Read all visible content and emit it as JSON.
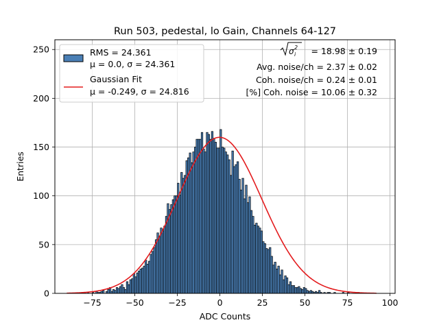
{
  "chart_data": {
    "type": "bar",
    "title": "Run 503, pedestal, lo Gain, Channels 64-127",
    "xlabel": "ADC Counts",
    "ylabel": "Entries",
    "xlim": [
      -97,
      103
    ],
    "ylim": [
      0,
      260
    ],
    "xticks": [
      -75,
      -50,
      -25,
      0,
      25,
      50,
      75,
      100
    ],
    "xtick_labels": [
      "−75",
      "−50",
      "−25",
      "0",
      "25",
      "50",
      "75",
      "100"
    ],
    "yticks": [
      0,
      50,
      100,
      150,
      200,
      250
    ],
    "ytick_labels": [
      "0",
      "50",
      "100",
      "150",
      "200",
      "250"
    ],
    "grid": true,
    "bin_start": -80,
    "bin_width": 1,
    "histogram_counts": [
      1,
      0,
      1,
      0,
      0,
      1,
      0,
      2,
      1,
      1,
      2,
      3,
      0,
      2,
      4,
      6,
      2,
      4,
      3,
      6,
      5,
      7,
      9,
      6,
      4,
      12,
      9,
      14,
      15,
      20,
      17,
      21,
      23,
      25,
      26,
      28,
      34,
      30,
      33,
      40,
      43,
      47,
      55,
      62,
      58,
      67,
      64,
      69,
      79,
      92,
      86,
      91,
      96,
      100,
      100,
      113,
      101,
      124,
      118,
      121,
      136,
      139,
      144,
      134,
      145,
      150,
      158,
      158,
      158,
      165,
      148,
      145,
      165,
      163,
      158,
      166,
      159,
      155,
      149,
      149,
      168,
      150,
      149,
      145,
      142,
      137,
      121,
      146,
      130,
      132,
      135,
      117,
      106,
      118,
      97,
      111,
      93,
      99,
      85,
      79,
      70,
      72,
      69,
      67,
      64,
      53,
      51,
      46,
      45,
      47,
      38,
      29,
      32,
      25,
      28,
      19,
      24,
      14,
      18,
      16,
      9,
      12,
      8,
      8,
      6,
      6,
      7,
      5,
      4,
      6,
      5,
      3,
      2,
      3,
      2,
      1,
      2,
      1,
      3,
      1,
      0,
      1,
      0,
      1,
      1,
      0,
      0,
      1,
      0,
      0,
      0,
      0,
      1,
      0,
      0,
      1,
      0,
      0,
      0,
      0,
      0,
      1
    ],
    "series": [
      {
        "name": "RMS = 24.361",
        "name_line2": "μ = 0.0, σ = 24.361",
        "type": "histogram",
        "color": "#4a7fb5",
        "edge_color": "#000000"
      },
      {
        "name": "Gaussian Fit",
        "name_line2": "μ = -0.249, σ = 24.816",
        "type": "line",
        "color": "#e31a1c",
        "amplitude": 160,
        "mu": -0.249,
        "sigma": 24.816,
        "x_range": [
          -90,
          92
        ]
      }
    ],
    "legend_position": "top-left",
    "annotations": [
      {
        "label": "= 18.98 ± 0.19",
        "formula": "sqrt-sigma-i-squared"
      },
      {
        "label": "Avg. noise/ch = 2.37 ± 0.02"
      },
      {
        "label": "Coh. noise/ch = 0.24 ± 0.01"
      },
      {
        "label": "[%] Coh. noise = 10.06 ± 0.32"
      }
    ]
  }
}
